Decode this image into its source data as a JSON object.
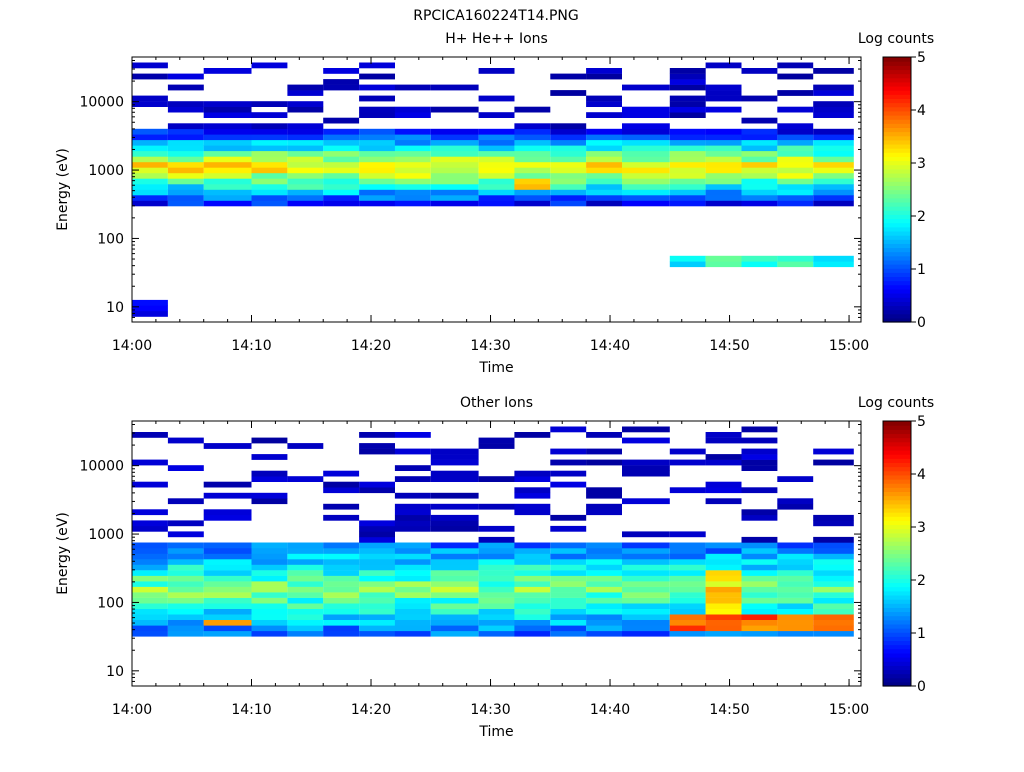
{
  "figure_title": "RPCICA160224T14.PNG",
  "chart_data": [
    {
      "type": "heatmap",
      "title": "H+ He++ Ions",
      "xlabel": "Time",
      "ylabel": "Energy (eV)",
      "y_scale": "log",
      "ylim": [
        6,
        45000
      ],
      "x_range": [
        "14:00",
        "15:01"
      ],
      "x_ticks": [
        "14:00",
        "14:10",
        "14:20",
        "14:30",
        "14:40",
        "14:50",
        "15:00"
      ],
      "y_ticks": [
        "10",
        "100",
        "1000",
        "10000"
      ],
      "colorbar": {
        "label": "Log counts",
        "ticks": [
          "0",
          "1",
          "2",
          "3",
          "4",
          "5"
        ],
        "range": [
          0,
          5
        ],
        "colormap": "jet"
      },
      "time_bins": [
        "14:00",
        "14:03",
        "14:06",
        "14:10",
        "14:13",
        "14:16",
        "14:19",
        "14:22",
        "14:25",
        "14:29",
        "14:32",
        "14:35",
        "14:38",
        "14:41",
        "14:45",
        "14:48",
        "14:51",
        "14:54",
        "14:57"
      ],
      "features": [
        {
          "time": [
            "14:00",
            "15:01"
          ],
          "energy": [
            300,
            4000
          ],
          "log_counts": [
            0.5,
            3.3
          ],
          "note": "broad band, peak around 500-1000 eV"
        },
        {
          "time": [
            "14:32",
            "14:35"
          ],
          "energy": [
            500,
            800
          ],
          "log_counts": 3.1
        },
        {
          "time": [
            "14:42",
            "15:01"
          ],
          "energy": [
            40,
            60
          ],
          "log_counts": 2.0
        },
        {
          "time": [
            "14:00",
            "14:03"
          ],
          "energy": [
            6,
            14
          ],
          "log_counts": 0.3
        }
      ]
    },
    {
      "type": "heatmap",
      "title": "Other Ions",
      "xlabel": "Time",
      "ylabel": "Energy (eV)",
      "y_scale": "log",
      "ylim": [
        6,
        45000
      ],
      "x_range": [
        "14:00",
        "15:01"
      ],
      "x_ticks": [
        "14:00",
        "14:10",
        "14:20",
        "14:30",
        "14:40",
        "14:50",
        "15:00"
      ],
      "y_ticks": [
        "10",
        "100",
        "1000",
        "10000"
      ],
      "colorbar": {
        "label": "Log counts",
        "ticks": [
          "0",
          "1",
          "2",
          "3",
          "4",
          "5"
        ],
        "range": [
          0,
          5
        ],
        "colormap": "jet"
      },
      "time_bins": [
        "14:00",
        "14:03",
        "14:06",
        "14:10",
        "14:13",
        "14:16",
        "14:19",
        "14:22",
        "14:25",
        "14:29",
        "14:32",
        "14:35",
        "14:38",
        "14:41",
        "14:45",
        "14:48",
        "14:51",
        "14:54",
        "14:57"
      ],
      "features": [
        {
          "time": [
            "14:00",
            "15:01"
          ],
          "energy": [
            30,
            800
          ],
          "log_counts": [
            1.0,
            2.5
          ]
        },
        {
          "time": [
            "14:06",
            "14:10"
          ],
          "energy": [
            45,
            60
          ],
          "log_counts": 3.7
        },
        {
          "time": [
            "14:42",
            "15:01"
          ],
          "energy": [
            40,
            65
          ],
          "log_counts": 3.9
        },
        {
          "time": [
            "14:48",
            "14:51"
          ],
          "energy": [
            60,
            300
          ],
          "log_counts": 3.2
        }
      ]
    }
  ]
}
